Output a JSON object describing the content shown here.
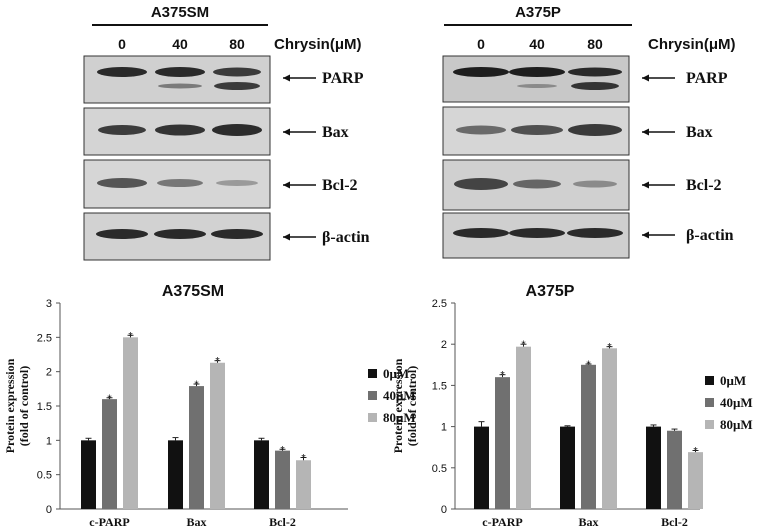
{
  "colors": {
    "bar_0uM": "#111111",
    "bar_40uM": "#707070",
    "bar_80uM": "#b5b5b5",
    "blot_bg": "#d2d2d2",
    "band": "#2a2a2a"
  },
  "blots": [
    {
      "cell_line": "A375SM",
      "doses": [
        "0",
        "40",
        "80"
      ],
      "treatment_label": "Chrysin(μM)",
      "proteins": [
        "PARP",
        "Bax",
        "Bcl-2",
        "β-actin"
      ]
    },
    {
      "cell_line": "A375P",
      "doses": [
        "0",
        "40",
        "80"
      ],
      "treatment_label": "Chrysin(μM)",
      "proteins": [
        "PARP",
        "Bax",
        "Bcl-2",
        "β-actin"
      ]
    }
  ],
  "chart_data": [
    {
      "type": "bar",
      "title": "A375SM",
      "ylabel": [
        "Protein expression",
        "(fold of control)"
      ],
      "categories": [
        "c-PARP",
        "Bax",
        "Bcl-2"
      ],
      "ylim": [
        0,
        3
      ],
      "yticks": [
        "0",
        "0.5",
        "1",
        "1.5",
        "2",
        "2.5",
        "3"
      ],
      "series": [
        {
          "name": "0μM",
          "values": [
            1.0,
            1.0,
            1.0
          ],
          "errors": [
            0.03,
            0.04,
            0.03
          ],
          "sig": [
            false,
            false,
            false
          ]
        },
        {
          "name": "40μM",
          "values": [
            1.6,
            1.79,
            0.85
          ],
          "errors": [
            0.02,
            0.03,
            0.02
          ],
          "sig": [
            true,
            true,
            true
          ]
        },
        {
          "name": "80μM",
          "values": [
            2.5,
            2.13,
            0.71
          ],
          "errors": [
            0.03,
            0.03,
            0.04
          ],
          "sig": [
            true,
            true,
            true
          ]
        }
      ],
      "legend": "right"
    },
    {
      "type": "bar",
      "title": "A375P",
      "ylabel": [
        "Protein expression",
        "(fold of control)"
      ],
      "categories": [
        "c-PARP",
        "Bax",
        "Bcl-2"
      ],
      "ylim": [
        0,
        2.5
      ],
      "yticks": [
        "0",
        "0.5",
        "1",
        "1.5",
        "2",
        "2.5"
      ],
      "series": [
        {
          "name": "0μM",
          "values": [
            1.0,
            1.0,
            1.0
          ],
          "errors": [
            0.06,
            0.01,
            0.02
          ],
          "sig": [
            false,
            false,
            false
          ]
        },
        {
          "name": "40μM",
          "values": [
            1.6,
            1.75,
            0.95
          ],
          "errors": [
            0.03,
            0.01,
            0.02
          ],
          "sig": [
            true,
            true,
            false
          ]
        },
        {
          "name": "80μM",
          "values": [
            1.97,
            1.95,
            0.69
          ],
          "errors": [
            0.03,
            0.02,
            0.02
          ],
          "sig": [
            true,
            true,
            true
          ]
        }
      ],
      "legend": "right"
    }
  ]
}
